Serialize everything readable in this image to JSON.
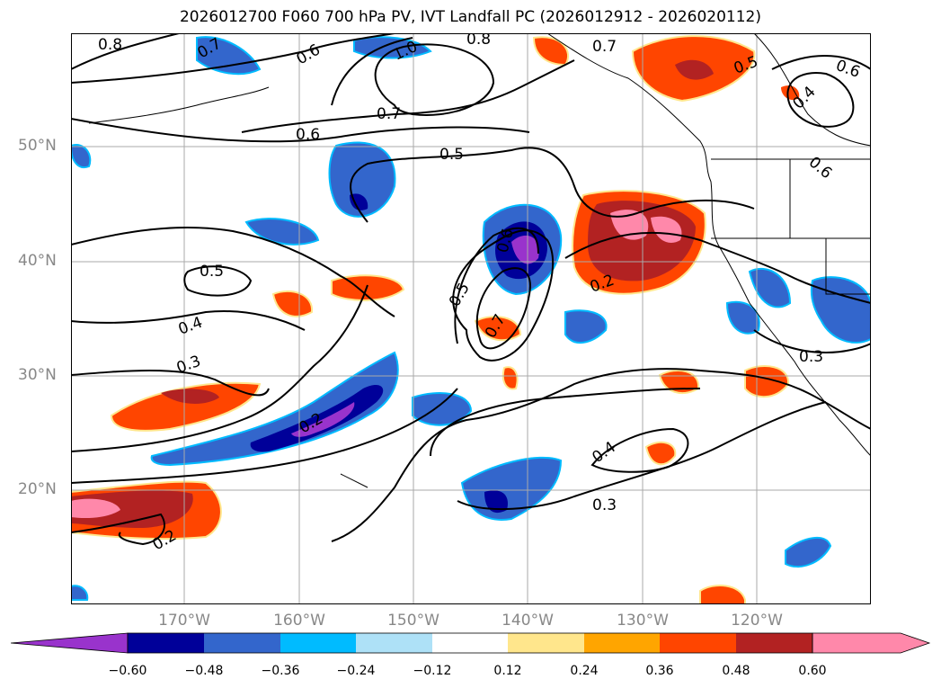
{
  "title": "2026012700 F060 700 hPa PV, IVT Landfall PC (2026012912 - 2026020112)",
  "lat_labels": [
    "50°N",
    "40°N",
    "30°N",
    "20°N"
  ],
  "lon_labels": [
    "170°W",
    "160°W",
    "150°W",
    "140°W",
    "130°W",
    "120°W"
  ],
  "contour_labels": [
    "0.8",
    "0.7",
    "0.6",
    "1.0",
    "0.8",
    "0.7",
    "0.7",
    "0.5",
    "0.6",
    "0.4",
    "0.6",
    "0.6",
    "0.5",
    "0.5",
    "0.4",
    "0.3",
    "0.6",
    "0.5",
    "0.7",
    "0.2",
    "0.2",
    "0.2",
    "0.4",
    "0.3",
    "0.3"
  ],
  "colorbar": {
    "ticks": [
      "−0.60",
      "−0.48",
      "−0.36",
      "−0.24",
      "−0.12",
      "0.12",
      "0.24",
      "0.36",
      "0.48",
      "0.60"
    ],
    "colors": [
      "#9933cc",
      "#000099",
      "#3366cc",
      "#00bbff",
      "#aee1f7",
      "#ffffff",
      "#ffe68c",
      "#ffa500",
      "#ff4500",
      "#b22222",
      "#ff88aa"
    ]
  },
  "chart_data": {
    "type": "map",
    "title": "2026012700 F060 700 hPa PV, IVT Landfall PC (2026012912 - 2026020112)",
    "lat_range": [
      10,
      60
    ],
    "lon_range": [
      -180,
      -110
    ],
    "filled_field_levels": [
      -0.6,
      -0.48,
      -0.36,
      -0.24,
      -0.12,
      0.12,
      0.24,
      0.36,
      0.48,
      0.6
    ],
    "contour_levels_labeled": [
      0.2,
      0.3,
      0.4,
      0.5,
      0.6,
      0.7,
      0.8,
      1.0
    ],
    "grid": true
  }
}
